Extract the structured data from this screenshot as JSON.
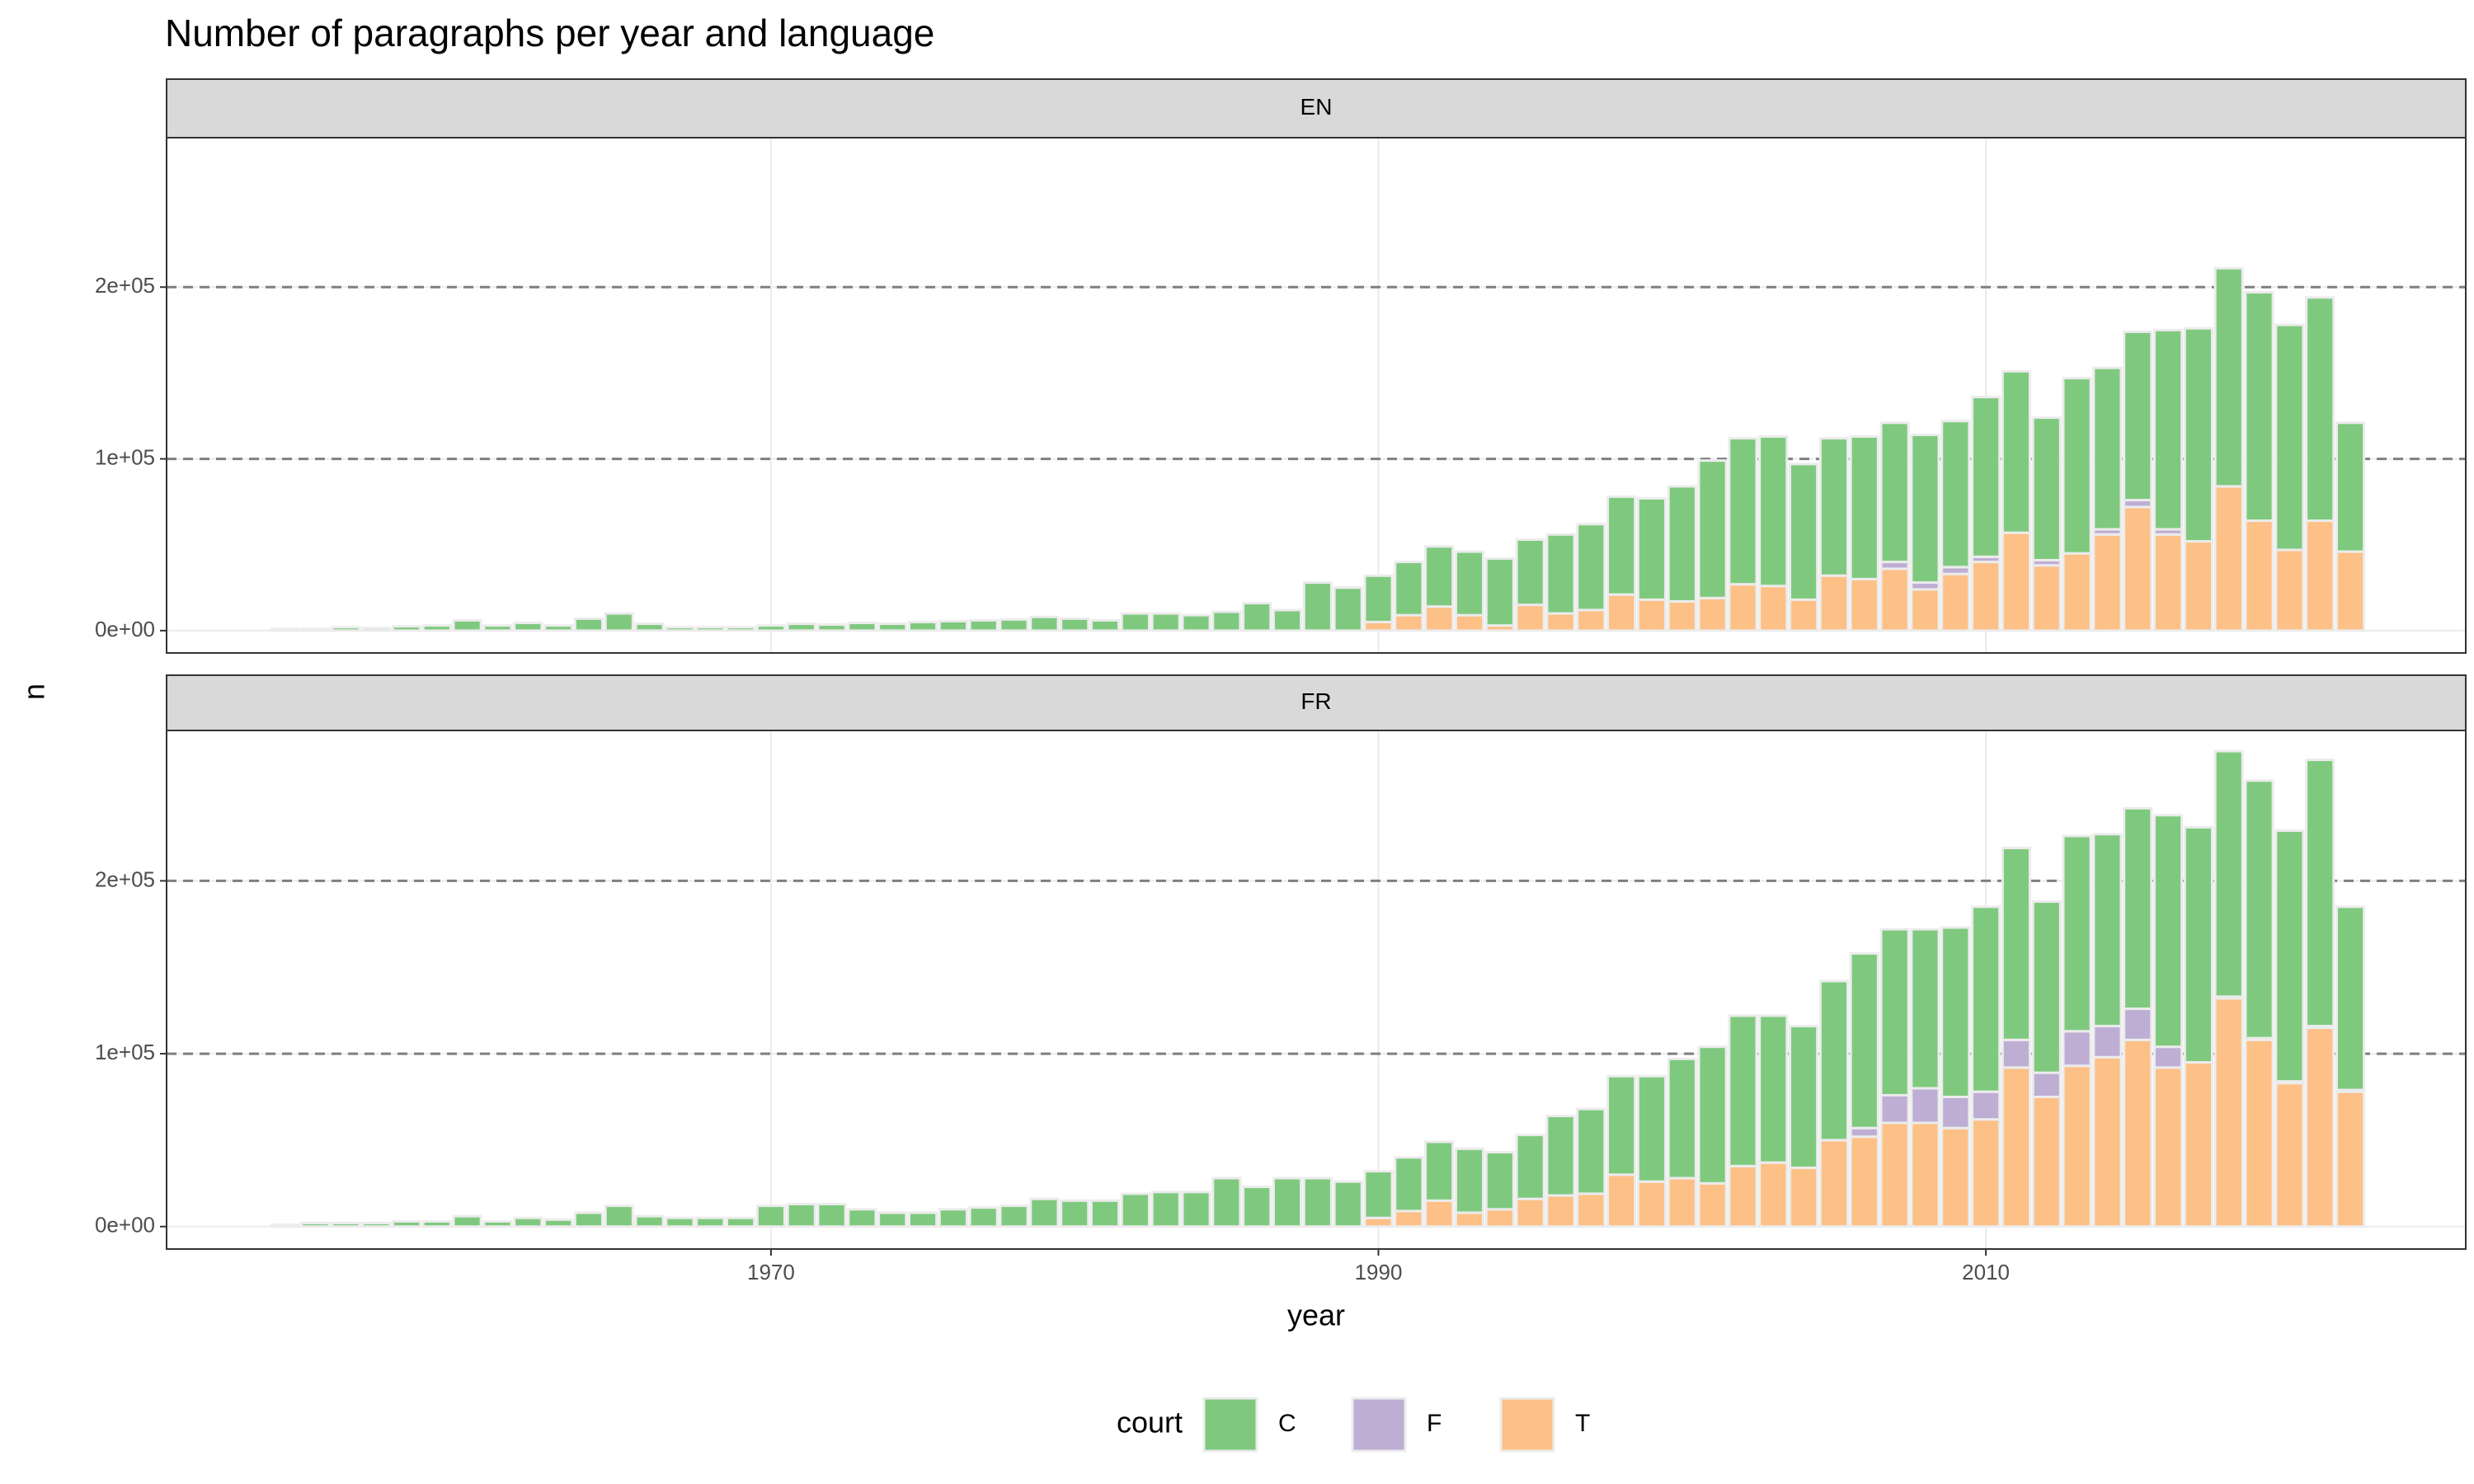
{
  "chart_data": {
    "type": "bar",
    "stacked": true,
    "title": "Number of paragraphs per year and language",
    "x_label": "year",
    "y_label": "n",
    "legend_title": "court",
    "legend_position": "bottom",
    "grid": true,
    "reference_lines": [
      100000,
      200000
    ],
    "xlim": [
      1950.1,
      2025.8
    ],
    "xticks": [
      1970,
      1990,
      2010
    ],
    "ylim": [
      -13000,
      287000
    ],
    "yticks": [
      {
        "value": 0,
        "label": "0e+00"
      },
      {
        "value": 100000,
        "label": "1e+05"
      },
      {
        "value": 200000,
        "label": "2e+05"
      }
    ],
    "x": [
      1954,
      1955,
      1956,
      1957,
      1958,
      1959,
      1960,
      1961,
      1962,
      1963,
      1964,
      1965,
      1966,
      1967,
      1968,
      1969,
      1970,
      1971,
      1972,
      1973,
      1974,
      1975,
      1976,
      1977,
      1978,
      1979,
      1980,
      1981,
      1982,
      1983,
      1984,
      1985,
      1986,
      1987,
      1988,
      1989,
      1990,
      1991,
      1992,
      1993,
      1994,
      1995,
      1996,
      1997,
      1998,
      1999,
      2000,
      2001,
      2002,
      2003,
      2004,
      2005,
      2006,
      2007,
      2008,
      2009,
      2010,
      2011,
      2012,
      2013,
      2014,
      2015,
      2016,
      2017,
      2018,
      2019,
      2020,
      2021,
      2022
    ],
    "facets": [
      {
        "label": "EN",
        "series": [
          {
            "name": "C",
            "color": "#7fc97f",
            "values": [
              1000,
              1000,
              2000,
              1500,
              2500,
              3000,
              6000,
              3000,
              4500,
              3000,
              7000,
              10000,
              4000,
              2000,
              2000,
              2000,
              3000,
              4000,
              3500,
              4500,
              4000,
              5000,
              5500,
              6000,
              6500,
              8000,
              7000,
              6000,
              10000,
              10000,
              9000,
              11000,
              16000,
              12000,
              28000,
              25000,
              27000,
              31000,
              35000,
              37000,
              39000,
              38000,
              46000,
              50000,
              57000,
              59000,
              67000,
              80000,
              85000,
              87000,
              79000,
              80000,
              83000,
              81000,
              86000,
              85000,
              93000,
              94000,
              83000,
              102000,
              94000,
              98000,
              116000,
              124000,
              127000,
              133000,
              131000,
              130000,
              75000
            ]
          },
          {
            "name": "F",
            "color": "#beaed4",
            "values": [
              0,
              0,
              0,
              0,
              0,
              0,
              0,
              0,
              0,
              0,
              0,
              0,
              0,
              0,
              0,
              0,
              0,
              0,
              0,
              0,
              0,
              0,
              0,
              0,
              0,
              0,
              0,
              0,
              0,
              0,
              0,
              0,
              0,
              0,
              0,
              0,
              0,
              0,
              0,
              0,
              0,
              0,
              0,
              0,
              0,
              0,
              0,
              0,
              0,
              0,
              0,
              0,
              0,
              4000,
              4000,
              4000,
              3000,
              0,
              3000,
              0,
              3000,
              4000,
              3000,
              0,
              0,
              0,
              0,
              0,
              0
            ]
          },
          {
            "name": "T",
            "color": "#fdc086",
            "values": [
              0,
              0,
              0,
              0,
              0,
              0,
              0,
              0,
              0,
              0,
              0,
              0,
              0,
              0,
              0,
              0,
              0,
              0,
              0,
              0,
              0,
              0,
              0,
              0,
              0,
              0,
              0,
              0,
              0,
              0,
              0,
              0,
              0,
              0,
              0,
              0,
              5000,
              9000,
              14000,
              9000,
              3000,
              15000,
              10000,
              12000,
              21000,
              18000,
              17000,
              19000,
              27000,
              26000,
              18000,
              32000,
              30000,
              36000,
              24000,
              33000,
              40000,
              57000,
              38000,
              45000,
              56000,
              72000,
              56000,
              52000,
              84000,
              64000,
              47000,
              64000,
              46000
            ]
          }
        ]
      },
      {
        "label": "FR",
        "series": [
          {
            "name": "C",
            "color": "#7fc97f",
            "values": [
              1000,
              2000,
              2000,
              2000,
              3000,
              3000,
              6000,
              3000,
              5000,
              4000,
              8000,
              12000,
              6000,
              5000,
              5000,
              5000,
              12000,
              13000,
              13000,
              10000,
              8000,
              8000,
              10000,
              11000,
              12000,
              16000,
              15000,
              15000,
              19000,
              20000,
              20000,
              28000,
              23000,
              28000,
              28000,
              26000,
              27000,
              31000,
              34000,
              37000,
              33000,
              37000,
              46000,
              49000,
              57000,
              61000,
              69000,
              79000,
              87000,
              85000,
              82000,
              92000,
              101000,
              96000,
              92000,
              98000,
              107000,
              111000,
              99000,
              113000,
              111000,
              116000,
              134000,
              136000,
              142000,
              149000,
              145000,
              154000,
              106000
            ]
          },
          {
            "name": "F",
            "color": "#beaed4",
            "values": [
              0,
              0,
              0,
              0,
              0,
              0,
              0,
              0,
              0,
              0,
              0,
              0,
              0,
              0,
              0,
              0,
              0,
              0,
              0,
              0,
              0,
              0,
              0,
              0,
              0,
              0,
              0,
              0,
              0,
              0,
              0,
              0,
              0,
              0,
              0,
              0,
              0,
              0,
              0,
              0,
              0,
              0,
              0,
              0,
              0,
              0,
              0,
              0,
              0,
              0,
              0,
              0,
              5000,
              16000,
              20000,
              18000,
              16000,
              16000,
              14000,
              20000,
              18000,
              18000,
              12000,
              0,
              1000,
              1000,
              1000,
              1000,
              1000
            ]
          },
          {
            "name": "T",
            "color": "#fdc086",
            "values": [
              0,
              0,
              0,
              0,
              0,
              0,
              0,
              0,
              0,
              0,
              0,
              0,
              0,
              0,
              0,
              0,
              0,
              0,
              0,
              0,
              0,
              0,
              0,
              0,
              0,
              0,
              0,
              0,
              0,
              0,
              0,
              0,
              0,
              0,
              0,
              0,
              5000,
              9000,
              15000,
              8000,
              10000,
              16000,
              18000,
              19000,
              30000,
              26000,
              28000,
              25000,
              35000,
              37000,
              34000,
              50000,
              52000,
              60000,
              60000,
              57000,
              62000,
              92000,
              75000,
              93000,
              98000,
              108000,
              92000,
              95000,
              132000,
              108000,
              83000,
              115000,
              78000
            ]
          }
        ]
      }
    ]
  }
}
